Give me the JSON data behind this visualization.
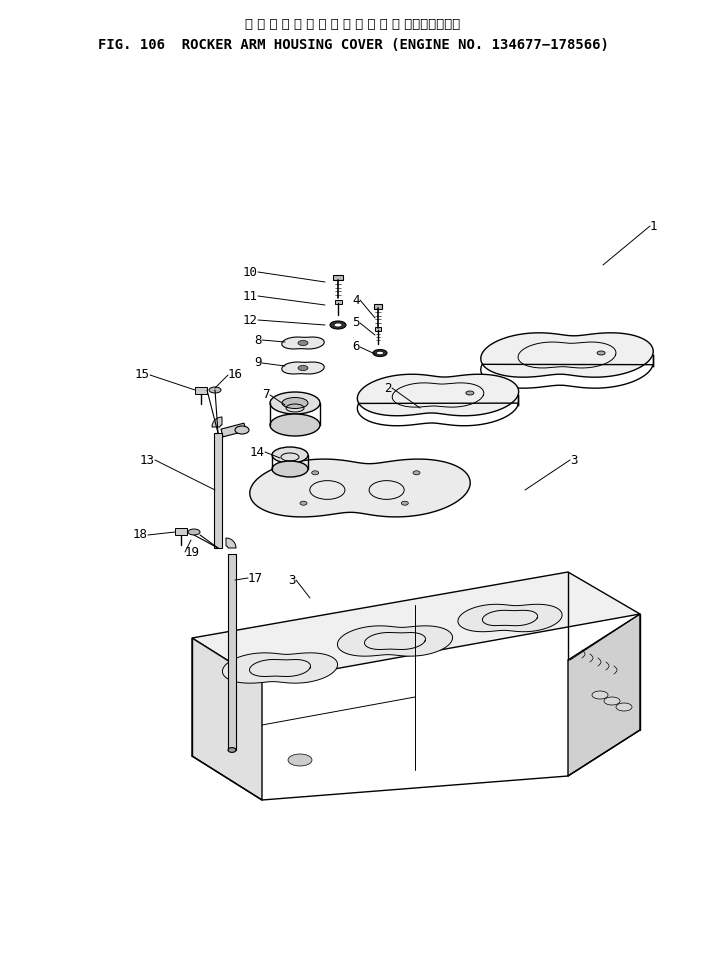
{
  "title_japanese": "ロ ッ カ ア ー ム ハ ウ ジ ン グ カ バ ー　　適用号機",
  "title_english": "FIG. 106  ROCKER ARM HOUSING COVER (ENGINE NO. 134677−178566)",
  "bg_color": "#ffffff",
  "line_color": "#000000",
  "text_color": "#000000",
  "fig_width": 7.06,
  "fig_height": 9.74,
  "dpi": 100
}
